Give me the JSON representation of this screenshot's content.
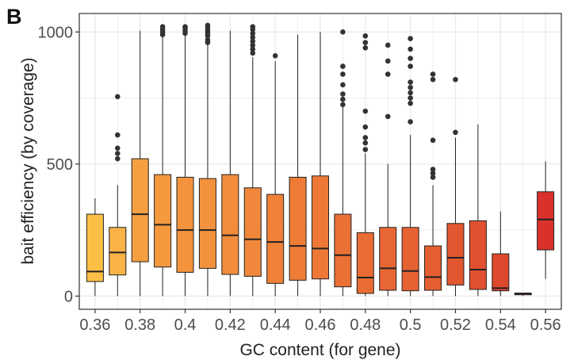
{
  "panel_label": "B",
  "chart_data": {
    "type": "boxplot",
    "xlabel": "GC content (for gene)",
    "ylabel": "bait efficiency (by coverage)",
    "ylim": [
      -50,
      1070
    ],
    "xlim": [
      0.353,
      0.567
    ],
    "yticks": [
      0,
      500,
      1000
    ],
    "ytick_labels": [
      "0",
      "500",
      "1000"
    ],
    "xticks": [
      0.36,
      0.38,
      0.4,
      0.42,
      0.44,
      0.46,
      0.48,
      0.5,
      0.52,
      0.54,
      0.56
    ],
    "xtick_labels": [
      "0.36",
      "0.38",
      "0.4",
      "0.42",
      "0.44",
      "0.46",
      "0.48",
      "0.5",
      "0.52",
      "0.54",
      "0.56"
    ],
    "grid": true,
    "legend": "none",
    "boxes": [
      {
        "x": 0.36,
        "low": 0,
        "q1": 55,
        "median": 93,
        "q3": 310,
        "high": 370,
        "color": "#fbbf45",
        "outliers": []
      },
      {
        "x": 0.37,
        "low": 0,
        "q1": 80,
        "median": 165,
        "q3": 260,
        "high": 420,
        "color": "#f9b347",
        "outliers": [
          520,
          540,
          560,
          610,
          755
        ]
      },
      {
        "x": 0.38,
        "low": 0,
        "q1": 130,
        "median": 310,
        "q3": 520,
        "high": 1005,
        "color": "#f5a040",
        "outliers": []
      },
      {
        "x": 0.39,
        "low": 0,
        "q1": 110,
        "median": 270,
        "q3": 460,
        "high": 1000,
        "color": "#f4993e",
        "outliers": [
          990,
          1000,
          1010,
          1020
        ]
      },
      {
        "x": 0.4,
        "low": 0,
        "q1": 90,
        "median": 250,
        "q3": 450,
        "high": 1000,
        "color": "#f3943d",
        "outliers": [
          995,
          1005,
          1015,
          1020
        ]
      },
      {
        "x": 0.41,
        "low": 0,
        "q1": 105,
        "median": 250,
        "q3": 445,
        "high": 1000,
        "color": "#f3923c",
        "outliers": [
          960,
          970,
          985,
          995,
          1005,
          1015,
          1025
        ]
      },
      {
        "x": 0.42,
        "low": 0,
        "q1": 82,
        "median": 230,
        "q3": 460,
        "high": 1005,
        "color": "#f28d3b",
        "outliers": []
      },
      {
        "x": 0.43,
        "low": 0,
        "q1": 75,
        "median": 215,
        "q3": 410,
        "high": 905,
        "color": "#f1873a",
        "outliers": [
          920,
          935,
          950,
          965,
          980,
          995,
          1010,
          1020
        ]
      },
      {
        "x": 0.44,
        "low": 0,
        "q1": 48,
        "median": 205,
        "q3": 385,
        "high": 890,
        "color": "#ef8138",
        "outliers": [
          910
        ]
      },
      {
        "x": 0.45,
        "low": 0,
        "q1": 60,
        "median": 190,
        "q3": 450,
        "high": 990,
        "color": "#ee7c37",
        "outliers": []
      },
      {
        "x": 0.46,
        "low": 0,
        "q1": 65,
        "median": 180,
        "q3": 455,
        "high": 1000,
        "color": "#ed7836",
        "outliers": []
      },
      {
        "x": 0.47,
        "low": 0,
        "q1": 35,
        "median": 155,
        "q3": 310,
        "high": 720,
        "color": "#ea7035",
        "outliers": [
          725,
          745,
          765,
          800,
          840,
          870,
          1000
        ]
      },
      {
        "x": 0.48,
        "low": 0,
        "q1": 10,
        "median": 70,
        "q3": 240,
        "high": 540,
        "color": "#e96c34",
        "outliers": [
          555,
          580,
          600,
          640,
          700,
          940,
          960,
          985
        ]
      },
      {
        "x": 0.49,
        "low": 0,
        "q1": 22,
        "median": 105,
        "q3": 260,
        "high": 500,
        "color": "#e76633",
        "outliers": [
          680,
          840,
          890,
          950
        ]
      },
      {
        "x": 0.5,
        "low": 0,
        "q1": 20,
        "median": 95,
        "q3": 260,
        "high": 610,
        "color": "#e66232",
        "outliers": [
          660,
          730,
          750,
          770,
          790,
          810,
          870,
          900,
          935,
          975
        ]
      },
      {
        "x": 0.51,
        "low": 0,
        "q1": 22,
        "median": 72,
        "q3": 190,
        "high": 420,
        "color": "#e55e31",
        "outliers": [
          450,
          465,
          480,
          590,
          820,
          840
        ]
      },
      {
        "x": 0.52,
        "low": 0,
        "q1": 42,
        "median": 145,
        "q3": 275,
        "high": 600,
        "color": "#e35730",
        "outliers": [
          620,
          820
        ]
      },
      {
        "x": 0.53,
        "low": 0,
        "q1": 25,
        "median": 100,
        "q3": 285,
        "high": 650,
        "color": "#e1512f",
        "outliers": []
      },
      {
        "x": 0.54,
        "low": 0,
        "q1": 20,
        "median": 30,
        "q3": 160,
        "high": 320,
        "color": "#de482d",
        "outliers": []
      },
      {
        "x": 0.55,
        "low": 0,
        "q1": 5,
        "median": 10,
        "q3": 10,
        "high": 10,
        "color": "#db3f2c",
        "outliers": []
      },
      {
        "x": 0.56,
        "low": 65,
        "q1": 175,
        "median": 290,
        "q3": 395,
        "high": 510,
        "color": "#d9312b",
        "outliers": []
      }
    ]
  }
}
